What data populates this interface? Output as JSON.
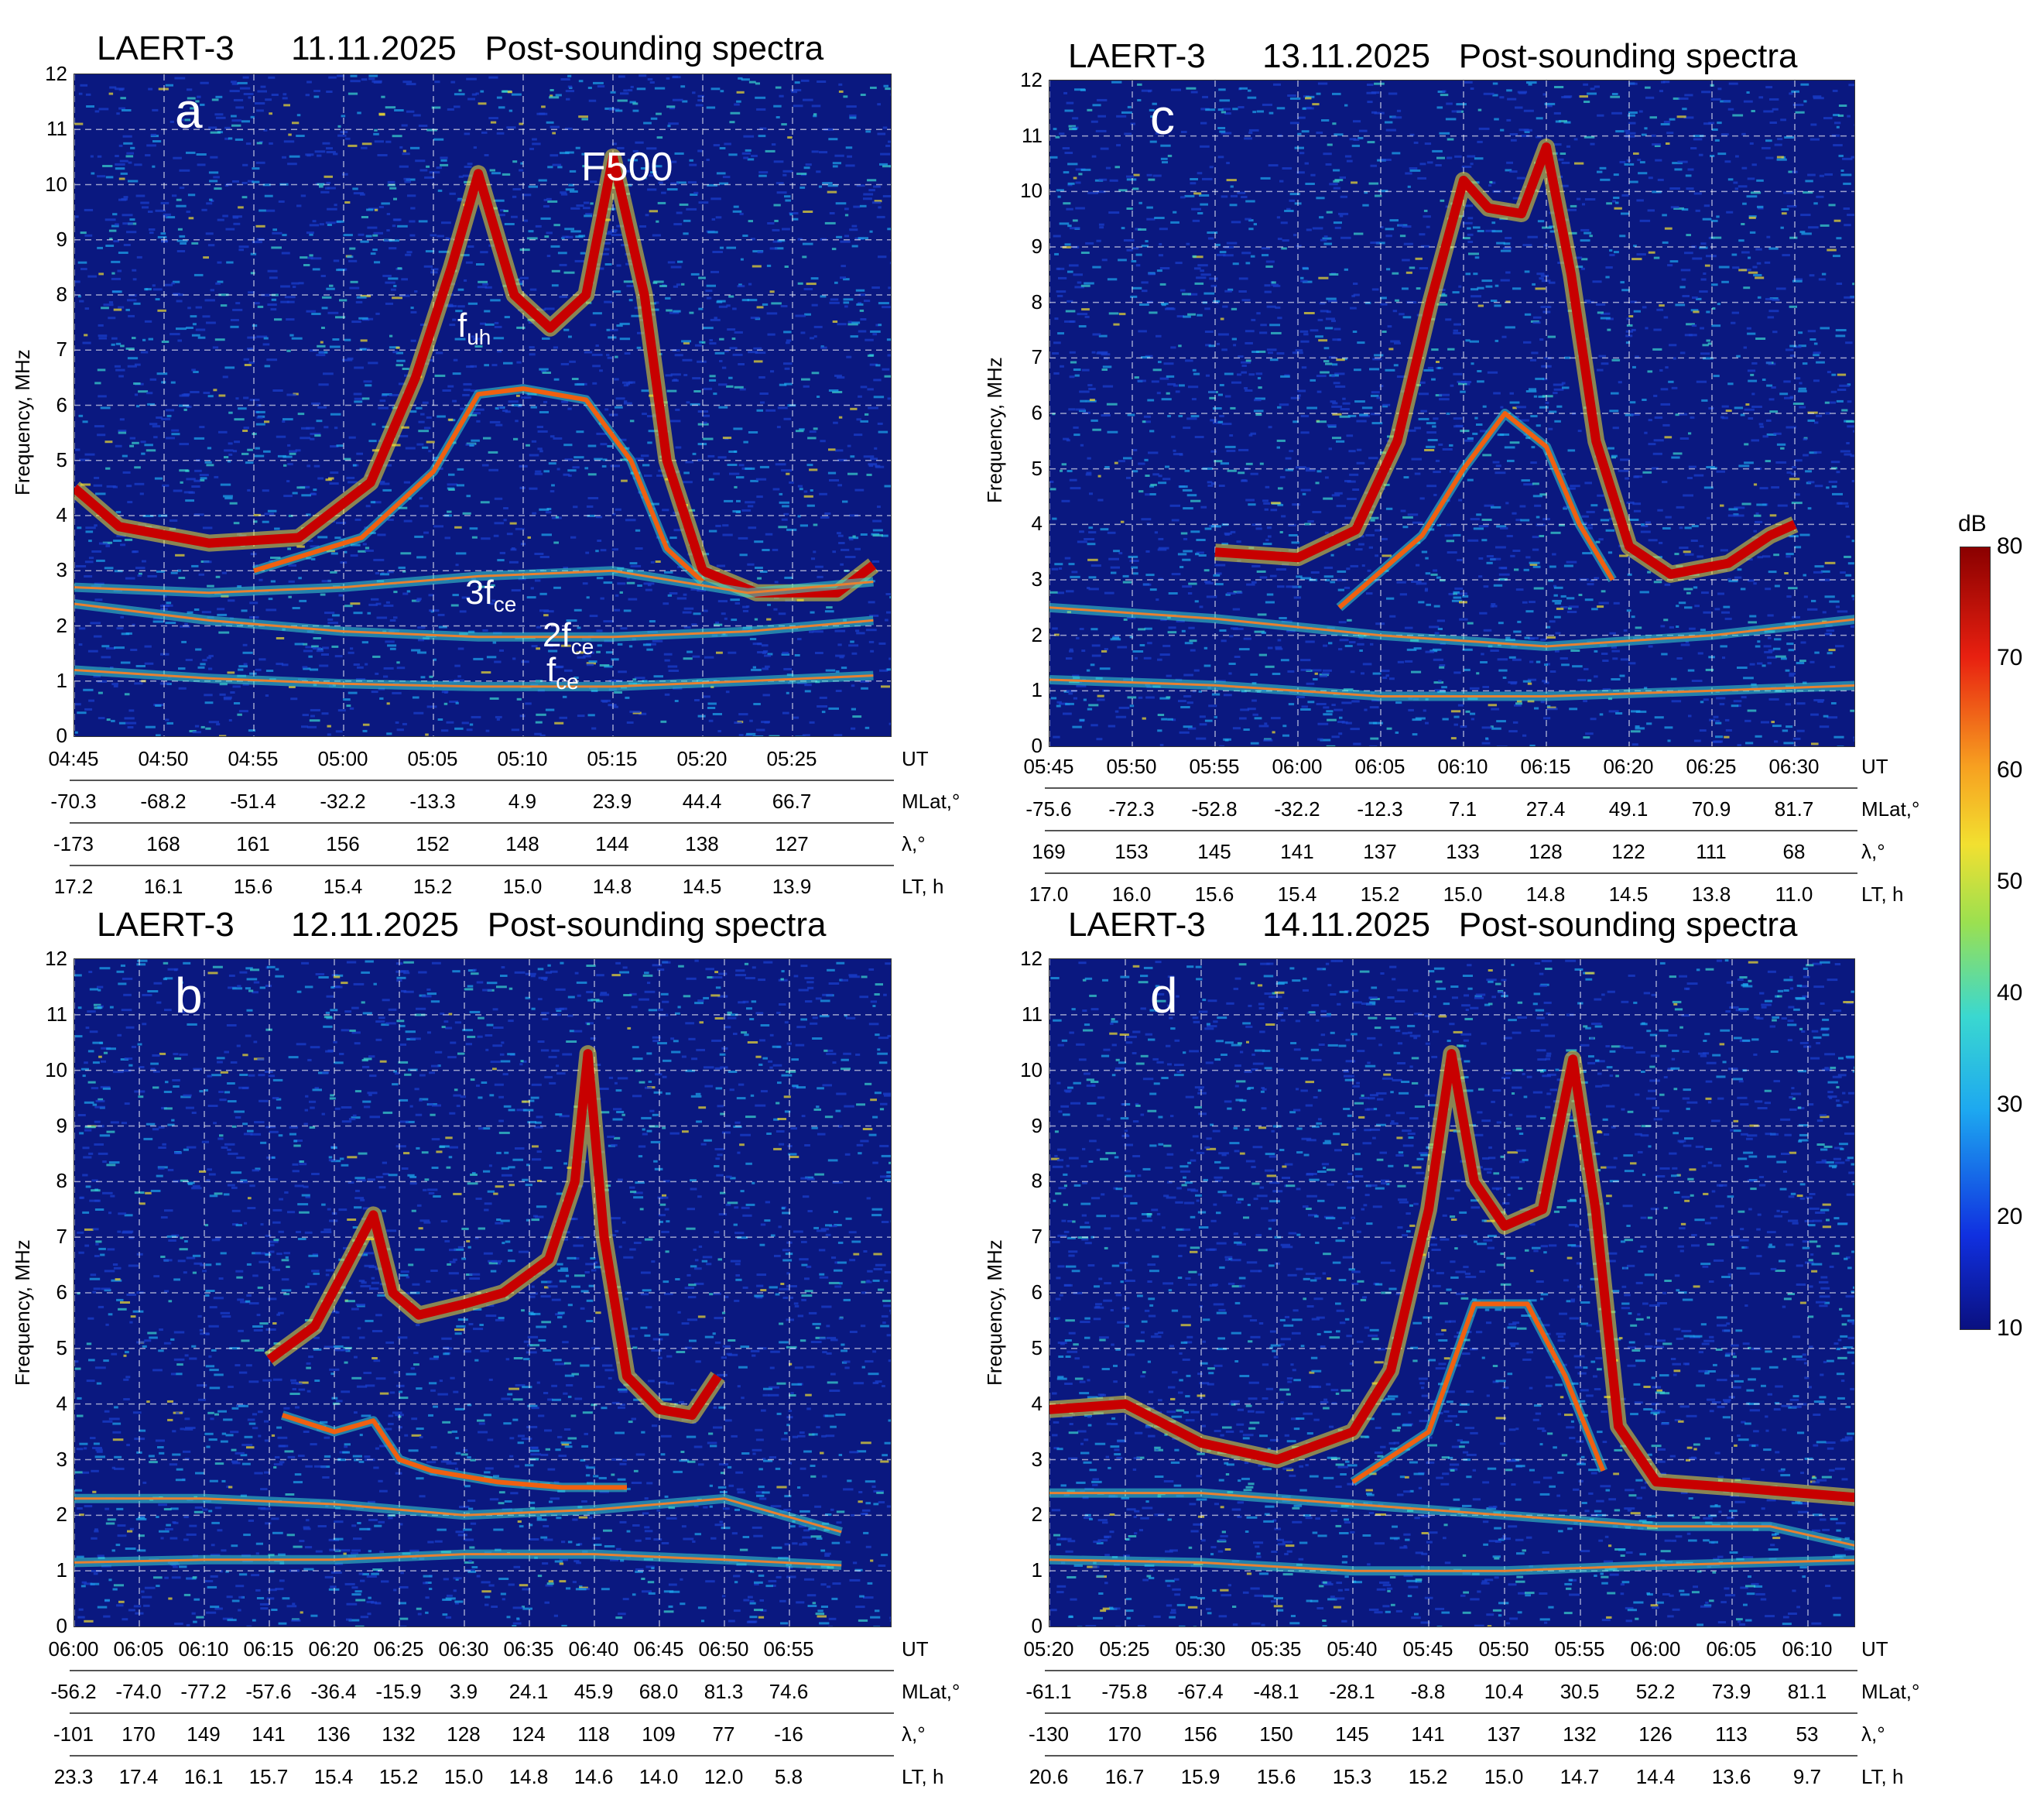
{
  "colorbar": {
    "label": "dB",
    "ticks": [
      80,
      70,
      60,
      50,
      40,
      30,
      20,
      10
    ],
    "min": 10,
    "max": 80
  },
  "panels": [
    {
      "letter": "a",
      "mission": "LAERT-3",
      "date": "11.11.2025",
      "subtitle": "Post-sounding spectra",
      "ylabel": "Frequency, MHz",
      "yticks": [
        "0",
        "1",
        "2",
        "3",
        "4",
        "5",
        "6",
        "7",
        "8",
        "9",
        "10",
        "11",
        "12"
      ],
      "ut": [
        "04:45",
        "04:50",
        "04:55",
        "05:00",
        "05:05",
        "05:10",
        "05:15",
        "05:20",
        "05:25"
      ],
      "mlat": [
        "-70.3",
        "-68.2",
        "-51.4",
        "-32.2",
        "-13.3",
        "4.9",
        "23.9",
        "44.4",
        "66.7"
      ],
      "lambda": [
        "-173",
        "168",
        "161",
        "156",
        "152",
        "148",
        "144",
        "138",
        "127"
      ],
      "lt": [
        "17.2",
        "16.1",
        "15.6",
        "15.4",
        "15.2",
        "15.0",
        "14.8",
        "14.5",
        "13.9"
      ],
      "row_units": [
        "UT",
        "MLat,°",
        "λ,°",
        "LT, h"
      ],
      "annotations": [
        {
          "text": "F500",
          "sub": ""
        },
        {
          "text": "f",
          "sub": "uh"
        },
        {
          "text": "3f",
          "sub": "ce"
        },
        {
          "text": "2f",
          "sub": "ce"
        },
        {
          "text": "f",
          "sub": "ce"
        }
      ]
    },
    {
      "letter": "b",
      "mission": "LAERT-3",
      "date": "12.11.2025",
      "subtitle": "Post-sounding spectra",
      "ylabel": "Frequency, MHz",
      "yticks": [
        "0",
        "1",
        "2",
        "3",
        "4",
        "5",
        "6",
        "7",
        "8",
        "9",
        "10",
        "11",
        "12"
      ],
      "ut": [
        "06:00",
        "06:05",
        "06:10",
        "06:15",
        "06:20",
        "06:25",
        "06:30",
        "06:35",
        "06:40",
        "06:45",
        "06:50",
        "06:55"
      ],
      "mlat": [
        "-56.2",
        "-74.0",
        "-77.2",
        "-57.6",
        "-36.4",
        "-15.9",
        "3.9",
        "24.1",
        "45.9",
        "68.0",
        "81.3",
        "74.6"
      ],
      "lambda": [
        "-101",
        "170",
        "149",
        "141",
        "136",
        "132",
        "128",
        "124",
        "118",
        "109",
        "77",
        "-16"
      ],
      "lt": [
        "23.3",
        "17.4",
        "16.1",
        "15.7",
        "15.4",
        "15.2",
        "15.0",
        "14.8",
        "14.6",
        "14.0",
        "12.0",
        "5.8"
      ],
      "row_units": [
        "UT",
        "MLat,°",
        "λ,°",
        "LT, h"
      ],
      "annotations": []
    },
    {
      "letter": "c",
      "mission": "LAERT-3",
      "date": "13.11.2025",
      "subtitle": "Post-sounding spectra",
      "ylabel": "Frequency, MHz",
      "yticks": [
        "0",
        "1",
        "2",
        "3",
        "4",
        "5",
        "6",
        "7",
        "8",
        "9",
        "10",
        "11",
        "12"
      ],
      "ut": [
        "05:45",
        "05:50",
        "05:55",
        "06:00",
        "06:05",
        "06:10",
        "06:15",
        "06:20",
        "06:25",
        "06:30"
      ],
      "mlat": [
        "-75.6",
        "-72.3",
        "-52.8",
        "-32.2",
        "-12.3",
        "7.1",
        "27.4",
        "49.1",
        "70.9",
        "81.7"
      ],
      "lambda": [
        "169",
        "153",
        "145",
        "141",
        "137",
        "133",
        "128",
        "122",
        "111",
        "68"
      ],
      "lt": [
        "17.0",
        "16.0",
        "15.6",
        "15.4",
        "15.2",
        "15.0",
        "14.8",
        "14.5",
        "13.8",
        "11.0"
      ],
      "row_units": [
        "UT",
        "MLat,°",
        "λ,°",
        "LT, h"
      ],
      "annotations": []
    },
    {
      "letter": "d",
      "mission": "LAERT-3",
      "date": "14.11.2025",
      "subtitle": "Post-sounding spectra",
      "ylabel": "Frequency, MHz",
      "yticks": [
        "0",
        "1",
        "2",
        "3",
        "4",
        "5",
        "6",
        "7",
        "8",
        "9",
        "10",
        "11",
        "12"
      ],
      "ut": [
        "05:20",
        "05:25",
        "05:30",
        "05:35",
        "05:40",
        "05:45",
        "05:50",
        "05:55",
        "06:00",
        "06:05",
        "06:10"
      ],
      "mlat": [
        "-61.1",
        "-75.8",
        "-67.4",
        "-48.1",
        "-28.1",
        "-8.8",
        "10.4",
        "30.5",
        "52.2",
        "73.9",
        "81.1"
      ],
      "lambda": [
        "-130",
        "170",
        "156",
        "150",
        "145",
        "141",
        "137",
        "132",
        "126",
        "113",
        "53"
      ],
      "lt": [
        "20.6",
        "16.7",
        "15.9",
        "15.6",
        "15.3",
        "15.2",
        "15.0",
        "14.7",
        "14.4",
        "13.6",
        "9.7"
      ],
      "row_units": [
        "UT",
        "MLat,°",
        "λ,°",
        "LT, h"
      ],
      "annotations": []
    }
  ],
  "chart_data": [
    {
      "type": "heatmap",
      "title": "LAERT-3 11.11.2025 Post-sounding spectra",
      "ylabel": "Frequency, MHz",
      "ylim": [
        0,
        12
      ],
      "colorbar_label": "dB",
      "clim": [
        10,
        80
      ],
      "x": [
        "04:45",
        "04:50",
        "04:55",
        "05:00",
        "05:05",
        "05:10",
        "05:15",
        "05:20",
        "05:25"
      ],
      "traces": [
        {
          "name": "F500",
          "points": [
            [
              0,
              4.5
            ],
            [
              0.5,
              3.8
            ],
            [
              1.5,
              3.5
            ],
            [
              2.5,
              3.6
            ],
            [
              3.3,
              4.6
            ],
            [
              3.8,
              6.5
            ],
            [
              4.2,
              8.5
            ],
            [
              4.5,
              10.2
            ],
            [
              4.9,
              8.0
            ],
            [
              5.3,
              7.4
            ],
            [
              5.7,
              8.0
            ],
            [
              6.0,
              10.5
            ],
            [
              6.35,
              8.0
            ],
            [
              6.6,
              5.0
            ],
            [
              7.0,
              3.0
            ],
            [
              7.6,
              2.6
            ],
            [
              8.5,
              2.6
            ],
            [
              8.9,
              3.1
            ]
          ]
        },
        {
          "name": "fuh",
          "points": [
            [
              2.0,
              3.0
            ],
            [
              3.2,
              3.6
            ],
            [
              4.0,
              4.8
            ],
            [
              4.5,
              6.2
            ],
            [
              5.0,
              6.3
            ],
            [
              5.7,
              6.1
            ],
            [
              6.2,
              5.0
            ],
            [
              6.6,
              3.4
            ],
            [
              7.0,
              2.8
            ]
          ]
        },
        {
          "name": "3fce",
          "points": [
            [
              0,
              2.7
            ],
            [
              1.5,
              2.6
            ],
            [
              3.0,
              2.7
            ],
            [
              4.5,
              2.9
            ],
            [
              6.0,
              3.0
            ],
            [
              7.5,
              2.6
            ],
            [
              8.9,
              2.8
            ]
          ]
        },
        {
          "name": "2fce",
          "points": [
            [
              0,
              2.4
            ],
            [
              1.5,
              2.1
            ],
            [
              3.0,
              1.9
            ],
            [
              4.5,
              1.8
            ],
            [
              6.0,
              1.8
            ],
            [
              7.5,
              1.9
            ],
            [
              8.9,
              2.1
            ]
          ]
        },
        {
          "name": "fce",
          "points": [
            [
              0,
              1.2
            ],
            [
              1.5,
              1.05
            ],
            [
              3.0,
              0.95
            ],
            [
              4.5,
              0.9
            ],
            [
              6.0,
              0.9
            ],
            [
              7.5,
              1.0
            ],
            [
              8.9,
              1.1
            ]
          ]
        }
      ]
    },
    {
      "type": "heatmap",
      "title": "LAERT-3 12.11.2025 Post-sounding spectra",
      "ylabel": "Frequency, MHz",
      "ylim": [
        0,
        12
      ],
      "colorbar_label": "dB",
      "clim": [
        10,
        80
      ],
      "x": [
        "06:00",
        "06:05",
        "06:10",
        "06:15",
        "06:20",
        "06:25",
        "06:30",
        "06:35",
        "06:40",
        "06:45",
        "06:50",
        "06:55"
      ],
      "traces": [
        {
          "name": "",
          "points": [
            [
              3.0,
              4.8
            ],
            [
              3.7,
              5.4
            ],
            [
              4.2,
              6.5
            ],
            [
              4.6,
              7.4
            ],
            [
              4.9,
              6.0
            ],
            [
              5.3,
              5.6
            ],
            [
              6.0,
              5.8
            ],
            [
              6.6,
              6.0
            ],
            [
              7.3,
              6.6
            ],
            [
              7.7,
              8.0
            ],
            [
              7.9,
              10.3
            ],
            [
              8.15,
              7.0
            ],
            [
              8.5,
              4.5
            ],
            [
              9.0,
              3.9
            ],
            [
              9.5,
              3.8
            ],
            [
              9.9,
              4.5
            ]
          ]
        },
        {
          "name": "",
          "points": [
            [
              3.2,
              3.8
            ],
            [
              4.0,
              3.5
            ],
            [
              4.6,
              3.7
            ],
            [
              5.0,
              3.0
            ],
            [
              5.5,
              2.8
            ],
            [
              6.5,
              2.6
            ],
            [
              7.5,
              2.5
            ],
            [
              8.5,
              2.5
            ]
          ]
        },
        {
          "name": "",
          "points": [
            [
              0,
              2.3
            ],
            [
              2.0,
              2.3
            ],
            [
              4.0,
              2.2
            ],
            [
              6.0,
              2.0
            ],
            [
              8.0,
              2.1
            ],
            [
              10.0,
              2.3
            ],
            [
              11.8,
              1.7
            ]
          ]
        },
        {
          "name": "",
          "points": [
            [
              0,
              1.15
            ],
            [
              2.0,
              1.2
            ],
            [
              4.0,
              1.2
            ],
            [
              6.0,
              1.3
            ],
            [
              8.0,
              1.3
            ],
            [
              10.0,
              1.2
            ],
            [
              11.8,
              1.1
            ]
          ]
        }
      ]
    },
    {
      "type": "heatmap",
      "title": "LAERT-3 13.11.2025 Post-sounding spectra",
      "ylabel": "Frequency, MHz",
      "ylim": [
        0,
        12
      ],
      "colorbar_label": "dB",
      "clim": [
        10,
        80
      ],
      "x": [
        "05:45",
        "05:50",
        "05:55",
        "06:00",
        "06:05",
        "06:10",
        "06:15",
        "06:20",
        "06:25",
        "06:30"
      ],
      "traces": [
        {
          "name": "",
          "points": [
            [
              2.0,
              3.5
            ],
            [
              3.0,
              3.4
            ],
            [
              3.7,
              3.9
            ],
            [
              4.2,
              5.5
            ],
            [
              4.6,
              8.0
            ],
            [
              5.0,
              10.2
            ],
            [
              5.3,
              9.7
            ],
            [
              5.7,
              9.6
            ],
            [
              6.0,
              10.8
            ],
            [
              6.3,
              8.5
            ],
            [
              6.6,
              5.5
            ],
            [
              7.0,
              3.6
            ],
            [
              7.5,
              3.1
            ],
            [
              8.2,
              3.3
            ],
            [
              8.7,
              3.8
            ],
            [
              9.0,
              4.0
            ]
          ]
        },
        {
          "name": "",
          "points": [
            [
              3.5,
              2.5
            ],
            [
              4.5,
              3.8
            ],
            [
              5.0,
              5.0
            ],
            [
              5.5,
              6.0
            ],
            [
              6.0,
              5.4
            ],
            [
              6.4,
              4.0
            ],
            [
              6.8,
              3.0
            ]
          ]
        },
        {
          "name": "",
          "points": [
            [
              0,
              2.5
            ],
            [
              2.0,
              2.3
            ],
            [
              4.0,
              2.0
            ],
            [
              6.0,
              1.8
            ],
            [
              8.0,
              2.0
            ],
            [
              9.8,
              2.3
            ]
          ]
        },
        {
          "name": "",
          "points": [
            [
              0,
              1.2
            ],
            [
              2.0,
              1.1
            ],
            [
              4.0,
              0.9
            ],
            [
              6.0,
              0.9
            ],
            [
              8.0,
              1.0
            ],
            [
              9.8,
              1.1
            ]
          ]
        }
      ]
    },
    {
      "type": "heatmap",
      "title": "LAERT-3 14.11.2025 Post-sounding spectra",
      "ylabel": "Frequency, MHz",
      "ylim": [
        0,
        12
      ],
      "colorbar_label": "dB",
      "clim": [
        10,
        80
      ],
      "x": [
        "05:20",
        "05:25",
        "05:30",
        "05:35",
        "05:40",
        "05:45",
        "05:50",
        "05:55",
        "06:00",
        "06:05",
        "06:10"
      ],
      "traces": [
        {
          "name": "",
          "points": [
            [
              0,
              3.9
            ],
            [
              1.0,
              4.0
            ],
            [
              2.0,
              3.3
            ],
            [
              3.0,
              3.0
            ],
            [
              4.0,
              3.5
            ],
            [
              4.5,
              4.6
            ],
            [
              5.0,
              7.5
            ],
            [
              5.3,
              10.3
            ],
            [
              5.6,
              8.0
            ],
            [
              6.0,
              7.2
            ],
            [
              6.5,
              7.5
            ],
            [
              6.9,
              10.2
            ],
            [
              7.2,
              7.5
            ],
            [
              7.5,
              3.6
            ],
            [
              8.0,
              2.6
            ],
            [
              9.0,
              2.5
            ],
            [
              10.8,
              2.3
            ]
          ]
        },
        {
          "name": "",
          "points": [
            [
              4.0,
              2.6
            ],
            [
              5.0,
              3.5
            ],
            [
              5.6,
              5.8
            ],
            [
              6.3,
              5.8
            ],
            [
              6.8,
              4.5
            ],
            [
              7.3,
              2.8
            ]
          ]
        },
        {
          "name": "",
          "points": [
            [
              0,
              2.4
            ],
            [
              2.0,
              2.4
            ],
            [
              4.0,
              2.2
            ],
            [
              6.0,
              2.0
            ],
            [
              8.0,
              1.8
            ],
            [
              9.5,
              1.8
            ],
            [
              10.8,
              1.4
            ]
          ]
        },
        {
          "name": "",
          "points": [
            [
              0,
              1.2
            ],
            [
              2.0,
              1.15
            ],
            [
              4.0,
              1.0
            ],
            [
              6.0,
              1.0
            ],
            [
              8.0,
              1.1
            ],
            [
              10.8,
              1.2
            ]
          ]
        }
      ]
    }
  ]
}
